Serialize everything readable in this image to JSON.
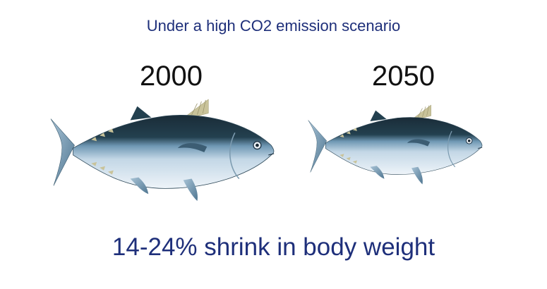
{
  "subtitle": "Under a high CO2 emission scenario",
  "comparison": [
    {
      "year": "2000",
      "icon": "tuna-fish-icon"
    },
    {
      "year": "2050",
      "icon": "tuna-fish-icon"
    }
  ],
  "headline": "14-24% shrink in body weight",
  "colors": {
    "text_blue": "#1e2f7a",
    "fish_back": "#1c2f3c",
    "fish_belly": "#dfeaf4",
    "fish_fin_yellow": "#c9c39a"
  }
}
